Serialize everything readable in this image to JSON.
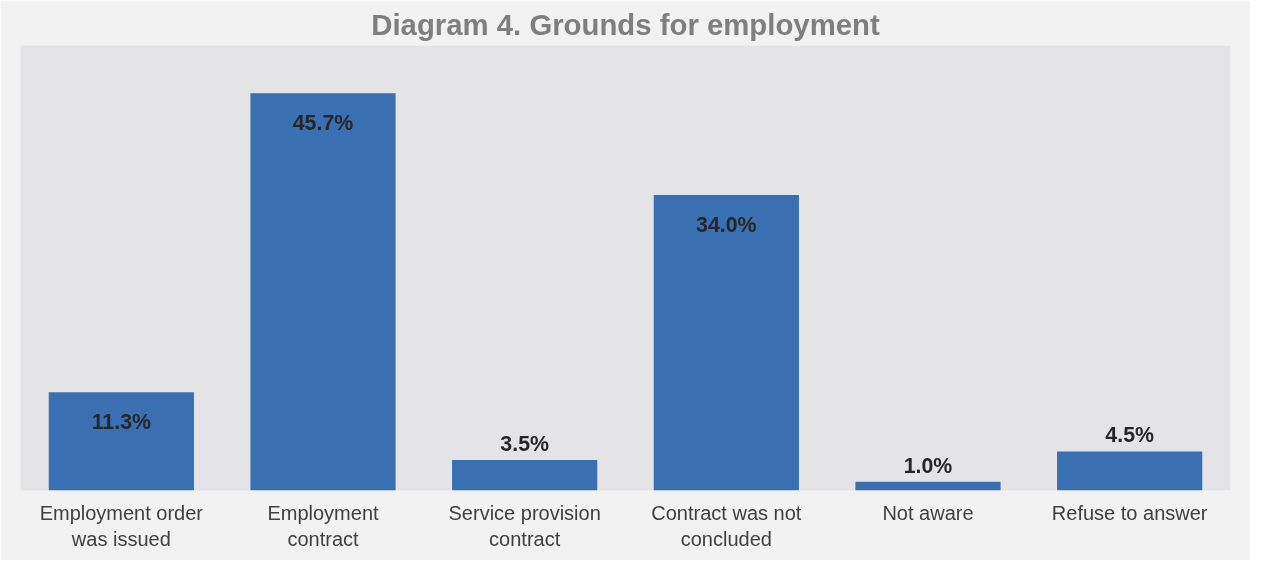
{
  "chart_data": {
    "type": "bar",
    "title": "Diagram 4. Grounds for employment",
    "categories": [
      "Employment order was issued",
      "Employment contract",
      "Service provision contract",
      "Contract was not concluded",
      "Not aware",
      "Refuse to answer"
    ],
    "values": [
      11.3,
      45.7,
      3.5,
      34.0,
      1.0,
      4.5
    ],
    "value_labels": [
      "11.3%",
      "45.7%",
      "3.5%",
      "34.0%",
      "1.0%",
      "4.5%"
    ],
    "color": "#3a70b2"
  }
}
